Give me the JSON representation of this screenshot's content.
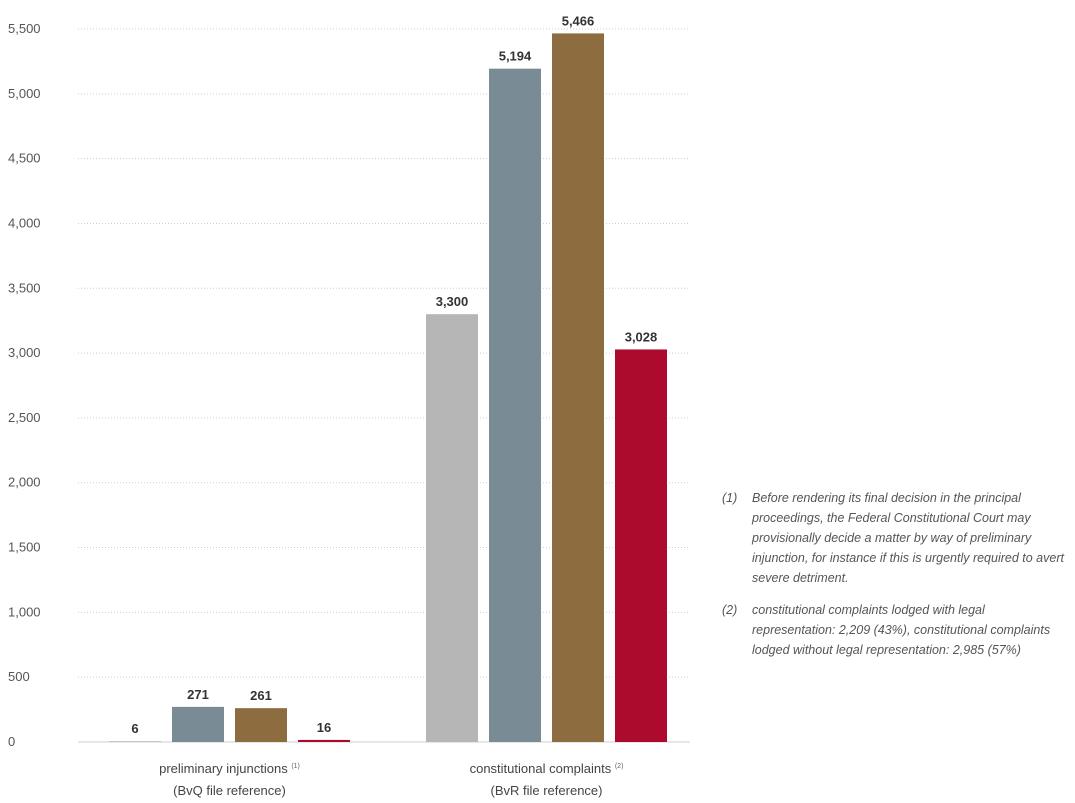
{
  "chart_data": {
    "type": "bar",
    "categories": [
      {
        "line1": "preliminary injunctions",
        "sup": "(1)",
        "line2": "(BvQ file reference)"
      },
      {
        "line1": "constitutional complaints",
        "sup": "(2)",
        "line2": "(BvR file reference)"
      }
    ],
    "series": [
      {
        "values": [
          6,
          3300
        ],
        "color": "#b7b6b6",
        "labels": [
          "6",
          "3,300"
        ]
      },
      {
        "values": [
          271,
          5194
        ],
        "color": "#798b94",
        "labels": [
          "271",
          "5,194"
        ]
      },
      {
        "values": [
          261,
          5466
        ],
        "color": "#8d6c3f",
        "labels": [
          "261",
          "5,466"
        ]
      },
      {
        "values": [
          16,
          3028
        ],
        "color": "#ac0b2e",
        "labels": [
          "16",
          "3,028"
        ]
      }
    ],
    "yticks": [
      0,
      500,
      1000,
      1500,
      2000,
      2500,
      3000,
      3500,
      4000,
      4500,
      5000,
      5500
    ],
    "ytick_labels": [
      "0",
      "500",
      "1,000",
      "1,500",
      "2,000",
      "2,500",
      "3,000",
      "3,500",
      "4,000",
      "4,500",
      "5,000",
      "5,500"
    ],
    "ylim": [
      0,
      5500
    ],
    "grid": true
  },
  "notes": [
    {
      "num": "(1)",
      "text": "Before rendering its final decision in the principal proceedings, the Federal Constitutional Court may provisionally decide a matter by way of preliminary injunction, for instance if this is urgently required to avert severe detriment."
    },
    {
      "num": "(2)",
      "text": "constitutional complaints lodged with legal representation: 2,209 (43%), constitutional complaints lodged without legal representation: 2,985 (57%)"
    }
  ]
}
